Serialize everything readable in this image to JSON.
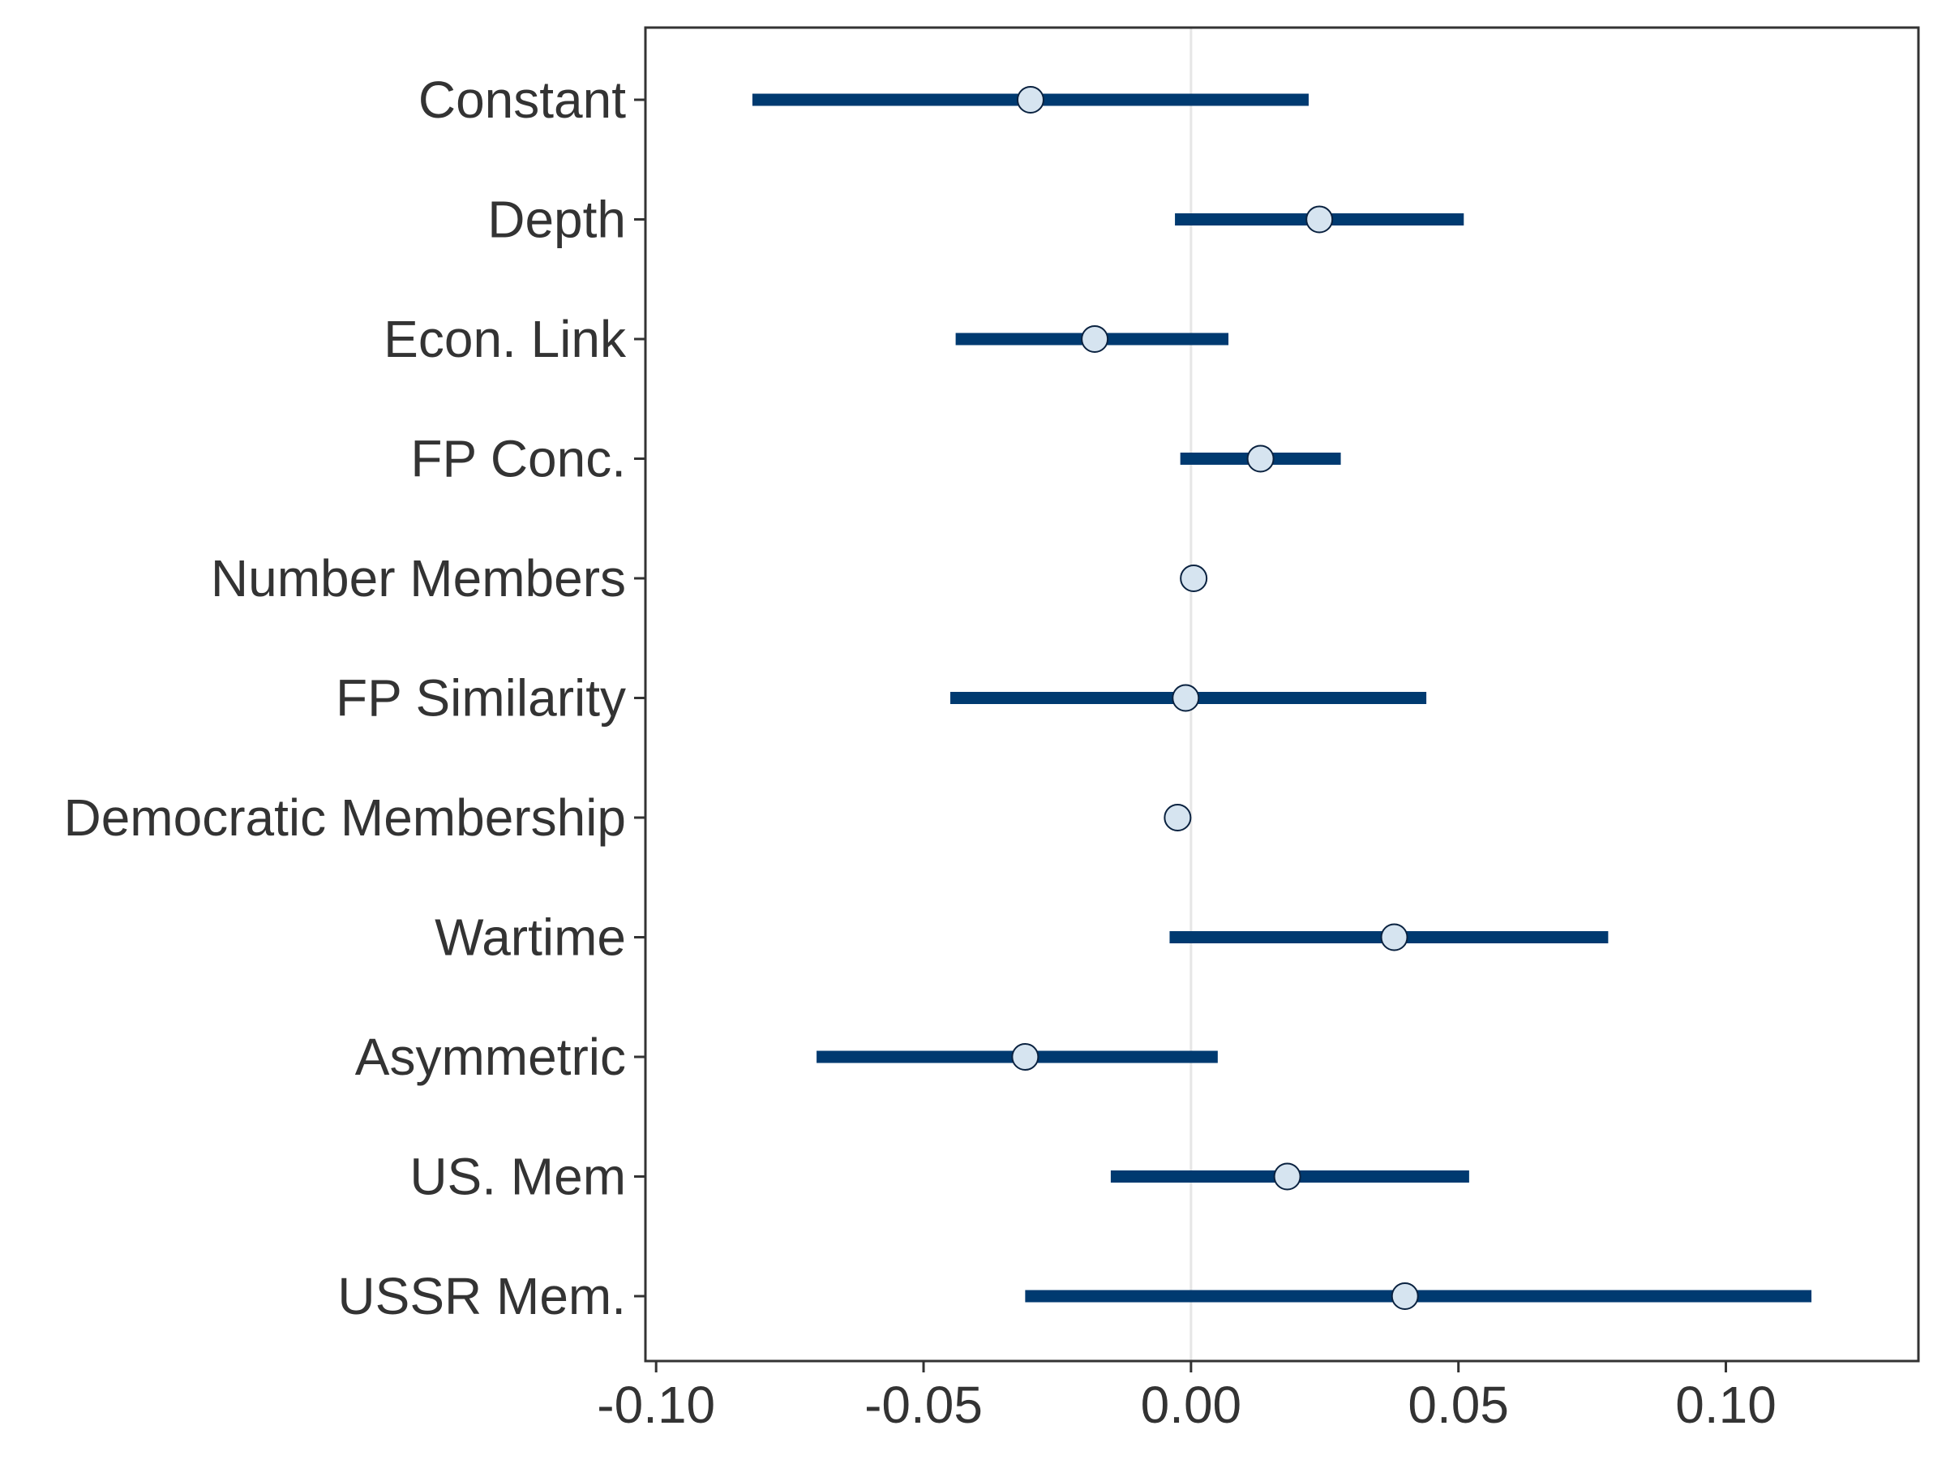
{
  "chart_data": {
    "type": "scatter",
    "subtype": "coefficient-plot",
    "title": "",
    "xlabel": "",
    "ylabel": "",
    "xlim": [
      -0.102,
      0.136
    ],
    "xticks": [
      -0.1,
      -0.05,
      0.0,
      0.05,
      0.1
    ],
    "xtick_labels": [
      "-0.10",
      "-0.05",
      "0.00",
      "0.05",
      "0.10"
    ],
    "reference_line_x": 0,
    "grid": false,
    "categories": [
      "Constant",
      "Depth",
      "Econ. Link",
      "FP Conc.",
      "Number Members",
      "FP Similarity",
      "Democratic Membership",
      "Wartime",
      "Asymmetric",
      "US. Mem",
      "USSR Mem."
    ],
    "series": [
      {
        "estimate": [
          -0.03,
          0.024,
          -0.018,
          0.013,
          0.0005,
          -0.001,
          -0.0025,
          0.038,
          -0.031,
          0.018,
          0.04
        ],
        "lower": [
          -0.082,
          -0.003,
          -0.044,
          -0.002,
          0.0003,
          -0.045,
          -0.0027,
          -0.004,
          -0.07,
          -0.015,
          -0.031
        ],
        "upper": [
          0.022,
          0.051,
          0.007,
          0.028,
          0.0007,
          0.044,
          -0.0023,
          0.078,
          0.005,
          0.052,
          0.116
        ]
      }
    ],
    "colors": {
      "interval": "#003a70",
      "point_fill": "#d6e4f0",
      "point_stroke": "#0a2240",
      "reference_line": "#e6e6e6",
      "axis": "#333333",
      "text": "#333333"
    }
  }
}
